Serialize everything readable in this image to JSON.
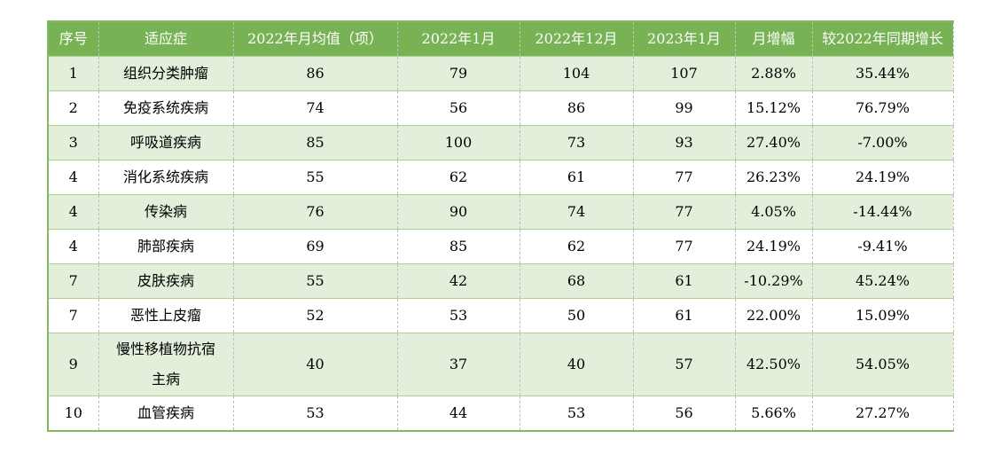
{
  "chart_data": {
    "type": "table",
    "columns": [
      "序号",
      "适应症",
      "2022年月均值（项）",
      "2022年1月",
      "2022年12月",
      "2023年1月",
      "月增幅",
      "较2022年同期增长"
    ],
    "rows": [
      [
        "1",
        "组织分类肿瘤",
        "86",
        "79",
        "104",
        "107",
        "2.88%",
        "35.44%"
      ],
      [
        "2",
        "免疫系统疾病",
        "74",
        "56",
        "86",
        "99",
        "15.12%",
        "76.79%"
      ],
      [
        "3",
        "呼吸道疾病",
        "85",
        "100",
        "73",
        "93",
        "27.40%",
        "-7.00%"
      ],
      [
        "4",
        "消化系统疾病",
        "55",
        "62",
        "61",
        "77",
        "26.23%",
        "24.19%"
      ],
      [
        "4",
        "传染病",
        "76",
        "90",
        "74",
        "77",
        "4.05%",
        "-14.44%"
      ],
      [
        "4",
        "肺部疾病",
        "69",
        "85",
        "62",
        "77",
        "24.19%",
        "-9.41%"
      ],
      [
        "7",
        "皮肤疾病",
        "55",
        "42",
        "68",
        "61",
        "-10.29%",
        "45.24%"
      ],
      [
        "7",
        "恶性上皮瘤",
        "52",
        "53",
        "50",
        "61",
        "22.00%",
        "15.09%"
      ],
      [
        "9",
        "慢性移植物抗宿主病",
        "40",
        "37",
        "40",
        "57",
        "42.50%",
        "54.05%"
      ],
      [
        "10",
        "血管疾病",
        "53",
        "44",
        "53",
        "56",
        "5.66%",
        "27.27%"
      ]
    ]
  },
  "colors": {
    "header_bg": "#77B355",
    "header_text": "#FFFFFF",
    "banded_row_bg": "#E2EFDA",
    "plain_row_bg": "#FFFFFF",
    "outer_border": "#84B862",
    "row_border": "#AECF93",
    "column_border": "#BFBFBF",
    "body_text": "#000000"
  }
}
